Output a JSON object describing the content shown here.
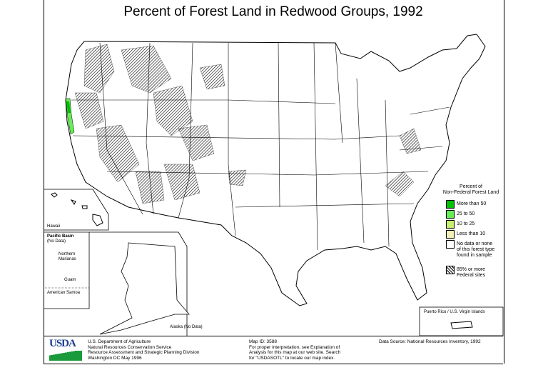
{
  "title": "Percent of Forest Land in Redwood Groups, 1992",
  "legend": {
    "title_lines": [
      "Percent of",
      "Non-Federal Forest Land"
    ],
    "items": [
      {
        "label": "More than 50",
        "color": "#00c000"
      },
      {
        "label": "25 to 50",
        "color": "#66ee55"
      },
      {
        "label": "10 to 25",
        "color": "#c8f070"
      },
      {
        "label": "Less than 10",
        "color": "#f0f0b8"
      },
      {
        "label": "No data or none of this forest type found in sample",
        "color": "#ffffff"
      },
      {
        "label": "85% or more Federal sites",
        "color": "hatched"
      }
    ]
  },
  "insets": {
    "hawaii": "Hawaii",
    "pacific_basin": "Pacific Basin",
    "pacific_no_data": "(No Data)",
    "northern_marianas_1": "Northern",
    "northern_marianas_2": "Marianas",
    "guam": "Guam",
    "american_samoa": "American Samoa",
    "alaska": "Alaska (No Data)",
    "puerto_rico": "Puerto Rico / U.S. Virgin Islands"
  },
  "footer": {
    "logo": "USDA",
    "agency_lines": [
      "U.S. Department of Agriculture",
      "Natural Resources Conservation Service",
      "Resource Assessment and Strategic Planning Division",
      "Washington DC   May 1996"
    ],
    "map_id": "Map ID: 3588",
    "note_lines": [
      "For proper interpretation, see Explanation of",
      "Analysis for this map at our web site.  Search",
      "for \"USDASOTL\" to locate our map index."
    ],
    "data_source": "Data Source:  National Resources Inventory, 1992"
  }
}
